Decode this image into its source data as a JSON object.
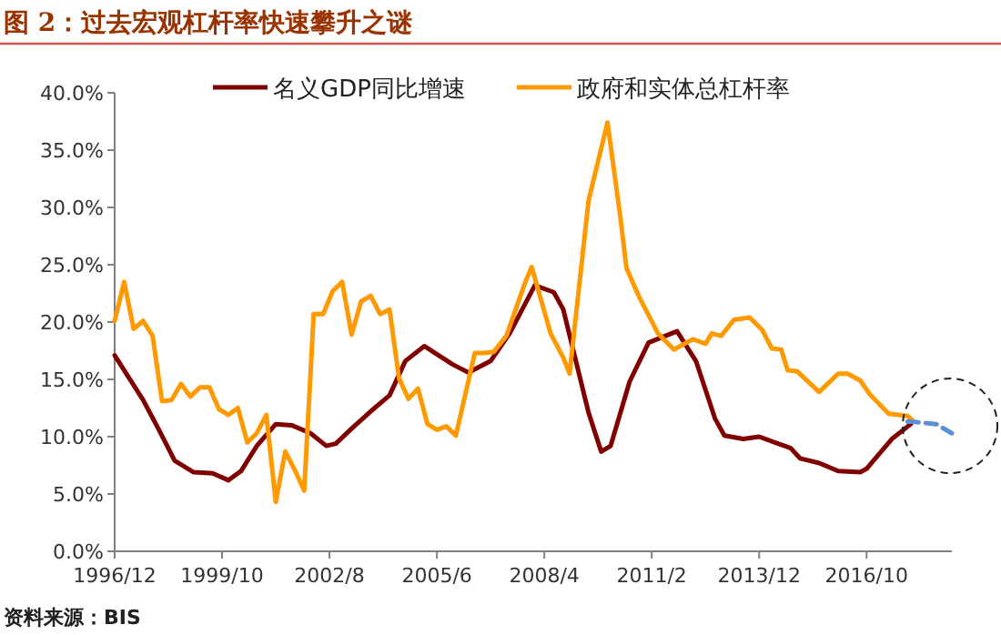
{
  "chart_data": {
    "type": "line",
    "title": "图 2：过去宏观杠杆率快速攀升之谜",
    "annotations": [
      "资料来源：BIS"
    ],
    "xlim": [
      "1996-12",
      "2019-01"
    ],
    "xticks": [
      {
        "value": "1996-12",
        "label": "1996/12"
      },
      {
        "value": "1999-10",
        "label": "1999/10"
      },
      {
        "value": "2002-08",
        "label": "2002/8"
      },
      {
        "value": "2005-06",
        "label": "2005/6"
      },
      {
        "value": "2008-04",
        "label": "2008/4"
      },
      {
        "value": "2011-02",
        "label": "2011/2"
      },
      {
        "value": "2013-12",
        "label": "2013/12"
      },
      {
        "value": "2016-10",
        "label": "2016/10"
      }
    ],
    "ylim": [
      0,
      40
    ],
    "yticks": [
      {
        "value": 0,
        "label": "0.0%"
      },
      {
        "value": 5,
        "label": "5.0%"
      },
      {
        "value": 10,
        "label": "10.0%"
      },
      {
        "value": 15,
        "label": "15.0%"
      },
      {
        "value": 20,
        "label": "20.0%"
      },
      {
        "value": 25,
        "label": "25.0%"
      },
      {
        "value": 30,
        "label": "30.0%"
      },
      {
        "value": 35,
        "label": "35.0%"
      },
      {
        "value": 40,
        "label": "40.0%"
      }
    ],
    "grid": false,
    "legend": "top",
    "marker": "none",
    "series": [
      {
        "name": "名义GDP同比增速",
        "color": "#800000",
        "x": [
          "1996-12",
          "1997-09",
          "1998-02",
          "1998-07",
          "1999-01",
          "1999-07",
          "1999-12",
          "2000-04",
          "2000-09",
          "2001-03",
          "2001-08",
          "2002-02",
          "2002-07",
          "2002-10",
          "2003-03",
          "2003-09",
          "2004-03",
          "2004-08",
          "2005-02",
          "2005-11",
          "2006-04",
          "2006-11",
          "2007-05",
          "2008-01",
          "2008-07",
          "2008-10",
          "2009-06",
          "2009-10",
          "2010-01",
          "2010-07",
          "2011-01",
          "2011-10",
          "2012-04",
          "2012-10",
          "2013-01",
          "2013-07",
          "2013-12",
          "2014-05",
          "2014-10",
          "2015-01",
          "2015-07",
          "2016-01",
          "2016-08",
          "2016-10",
          "2017-06",
          "2017-12"
        ],
        "values": [
          17.1,
          13.2,
          10.6,
          7.9,
          6.9,
          6.8,
          6.2,
          7.0,
          9.2,
          11.1,
          11.0,
          10.3,
          9.2,
          9.4,
          10.7,
          12.2,
          13.6,
          16.6,
          17.9,
          16.3,
          15.6,
          16.6,
          19.0,
          23.2,
          22.6,
          21.1,
          12.1,
          8.7,
          9.2,
          14.8,
          18.2,
          19.2,
          16.6,
          11.6,
          10.1,
          9.8,
          10.0,
          9.5,
          9.0,
          8.1,
          7.7,
          7.0,
          6.9,
          7.2,
          9.8,
          11.1
        ]
      },
      {
        "name": "政府和实体总杠杆率",
        "color": "#ff9900",
        "x": [
          "1996-12",
          "1997-03",
          "1997-06",
          "1997-09",
          "1997-12",
          "1998-03",
          "1998-06",
          "1998-09",
          "1998-12",
          "1999-03",
          "1999-06",
          "1999-09",
          "1999-12",
          "2000-03",
          "2000-06",
          "2000-09",
          "2000-12",
          "2001-03",
          "2001-06",
          "2001-09",
          "2001-12",
          "2002-03",
          "2002-06",
          "2002-09",
          "2002-12",
          "2003-03",
          "2003-06",
          "2003-09",
          "2003-12",
          "2004-03",
          "2004-06",
          "2004-09",
          "2004-12",
          "2005-03",
          "2005-06",
          "2005-09",
          "2005-12",
          "2006-06",
          "2006-09",
          "2006-12",
          "2007-04",
          "2007-10",
          "2007-12",
          "2008-06",
          "2008-10",
          "2008-12",
          "2009-06",
          "2009-12",
          "2010-04",
          "2010-06",
          "2010-10",
          "2011-04",
          "2011-09",
          "2012-03",
          "2012-07",
          "2012-09",
          "2012-12",
          "2013-04",
          "2013-09",
          "2014-01",
          "2014-04",
          "2014-07",
          "2014-09",
          "2014-12",
          "2015-07",
          "2016-01",
          "2016-04",
          "2016-08",
          "2016-11",
          "2017-05",
          "2017-08",
          "2017-11",
          "2018-01"
        ],
        "values": [
          20.1,
          23.5,
          19.4,
          20.1,
          18.8,
          13.1,
          13.2,
          14.6,
          13.5,
          14.3,
          14.3,
          12.4,
          11.9,
          12.5,
          9.5,
          10.3,
          11.9,
          4.3,
          8.7,
          7.1,
          5.3,
          20.7,
          20.7,
          22.7,
          23.5,
          18.9,
          21.8,
          22.3,
          20.7,
          21.1,
          15.1,
          13.3,
          14.2,
          11.1,
          10.6,
          10.9,
          10.1,
          17.3,
          17.3,
          17.4,
          18.8,
          23.5,
          24.8,
          19.0,
          16.9,
          15.5,
          30.6,
          37.4,
          29.3,
          24.7,
          22.2,
          19.0,
          17.6,
          18.5,
          18.1,
          19.0,
          18.8,
          20.2,
          20.4,
          19.3,
          17.7,
          17.6,
          15.8,
          15.7,
          13.9,
          15.5,
          15.5,
          14.9,
          13.7,
          12.0,
          11.9,
          11.8,
          11.3
        ]
      },
      {
        "color": "#5b8fd6",
        "line_style": "dashed",
        "x": [
          "2017-11",
          "2018-01",
          "2018-08",
          "2019-01"
        ],
        "values": [
          11.3,
          11.3,
          11.1,
          10.3
        ]
      }
    ]
  }
}
